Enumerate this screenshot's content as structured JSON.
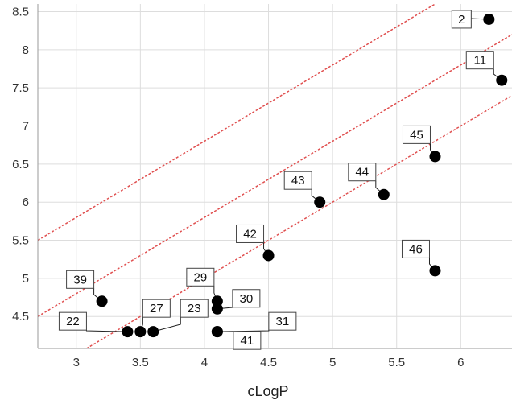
{
  "chart_data": {
    "type": "scatter",
    "title": "",
    "xlabel": "cLogP",
    "ylabel": "",
    "xlim": [
      2.7,
      6.4
    ],
    "ylim": [
      4.08,
      8.6
    ],
    "grid": true,
    "xticks": [
      3,
      3.5,
      4,
      4.5,
      5,
      5.5,
      6
    ],
    "xtick_labels": [
      "3",
      "3.5",
      "4",
      "4.5",
      "5",
      "5.5",
      "6"
    ],
    "yticks": [
      4.5,
      5,
      5.5,
      6,
      6.5,
      7,
      7.5,
      8,
      8.5
    ],
    "ytick_labels": [
      "4.5",
      "5",
      "5.5",
      "6",
      "6.5",
      "7",
      "7.5",
      "8",
      "8.5"
    ],
    "points": [
      {
        "label": "2",
        "x": 6.22,
        "y": 8.4
      },
      {
        "label": "11",
        "x": 6.32,
        "y": 7.6
      },
      {
        "label": "45",
        "x": 5.8,
        "y": 6.6
      },
      {
        "label": "44",
        "x": 5.4,
        "y": 6.1
      },
      {
        "label": "43",
        "x": 4.9,
        "y": 6.0
      },
      {
        "label": "42",
        "x": 4.5,
        "y": 5.3
      },
      {
        "label": "46",
        "x": 5.8,
        "y": 5.1
      },
      {
        "label": "39",
        "x": 3.2,
        "y": 4.7
      },
      {
        "label": "29",
        "x": 4.1,
        "y": 4.7
      },
      {
        "label": "30",
        "x": 4.1,
        "y": 4.6
      },
      {
        "label": "41",
        "x": 4.1,
        "y": 4.3
      },
      {
        "label": "31",
        "x": 4.1,
        "y": 4.3
      },
      {
        "label": "22",
        "x": 3.4,
        "y": 4.3
      },
      {
        "label": "27",
        "x": 3.5,
        "y": 4.3
      },
      {
        "label": "23",
        "x": 3.6,
        "y": 4.3
      }
    ],
    "reference_lines": [
      {
        "slope": 1,
        "intercept": 2.8
      },
      {
        "slope": 1,
        "intercept": 1.8
      },
      {
        "slope": 1,
        "intercept": 1.0
      }
    ],
    "colors": {
      "points": "#000000",
      "reference_lines": "#e05050",
      "grid": "#dddddd",
      "axis": "#999999"
    }
  }
}
